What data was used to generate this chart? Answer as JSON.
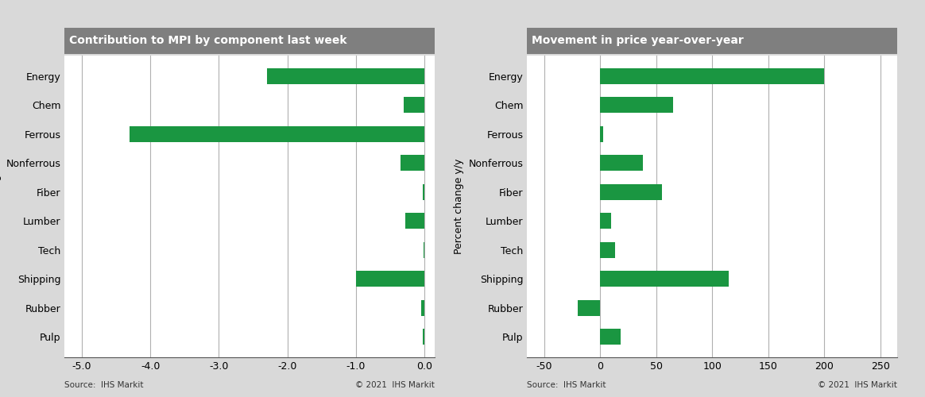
{
  "categories": [
    "Energy",
    "Chem",
    "Ferrous",
    "Nonferrous",
    "Fiber",
    "Lumber",
    "Tech",
    "Shipping",
    "Rubber",
    "Pulp"
  ],
  "left_values": [
    -2.3,
    -0.3,
    -4.3,
    -0.35,
    -0.02,
    -0.28,
    -0.01,
    -1.0,
    -0.05,
    -0.03
  ],
  "right_values": [
    200,
    65,
    3,
    38,
    55,
    10,
    13,
    115,
    -20,
    18
  ],
  "bar_color": "#1a9641",
  "left_title": "Contribution to MPI by component last week",
  "right_title": "Movement in price year-over-year",
  "left_ylabel": "Percent change",
  "right_ylabel": "Percent change y/y",
  "left_xlim": [
    -5.25,
    0.15
  ],
  "right_xlim": [
    -65,
    265
  ],
  "left_xticks": [
    -5.0,
    -4.0,
    -3.0,
    -2.0,
    -1.0,
    0.0
  ],
  "right_xticks": [
    -50,
    0,
    50,
    100,
    150,
    200,
    250
  ],
  "title_bg_color": "#7f7f7f",
  "title_text_color": "#ffffff",
  "bg_color": "#d9d9d9",
  "plot_bg_color": "#ffffff",
  "grid_color": "#b0b0b0",
  "source_left": "Source:  IHS Markit",
  "source_right": "Source:  IHS Markit",
  "copyright_left": "© 2021  IHS Markit",
  "copyright_right": "© 2021  IHS Markit"
}
